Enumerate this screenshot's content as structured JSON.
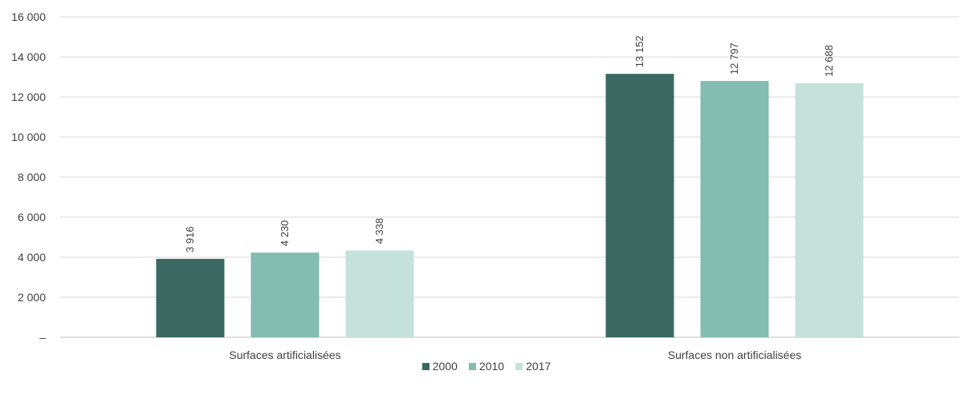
{
  "chart_data": {
    "type": "bar",
    "categories": [
      "Surfaces artificialisées",
      "Surfaces non artificialisées"
    ],
    "series": [
      {
        "name": "2000",
        "values": [
          3916,
          13152
        ],
        "labels": [
          "3 916",
          "13 152"
        ],
        "color": "#3a6961"
      },
      {
        "name": "2010",
        "values": [
          4230,
          12797
        ],
        "labels": [
          "4 230",
          "12 797"
        ],
        "color": "#83bcb1"
      },
      {
        "name": "2017",
        "values": [
          4338,
          12688
        ],
        "labels": [
          "4 338",
          "12 688"
        ],
        "color": "#c4e2db"
      }
    ],
    "ylim": [
      0,
      16000
    ],
    "yticks": [
      0,
      2000,
      4000,
      6000,
      8000,
      10000,
      12000,
      14000,
      16000
    ],
    "ytick_labels": [
      "–",
      "2 000",
      "4 000",
      "6 000",
      "8 000",
      "10 000",
      "12 000",
      "14 000",
      "16 000"
    ],
    "grid": true,
    "legend_position": "bottom-center",
    "data_label_rotation": "vertical"
  }
}
